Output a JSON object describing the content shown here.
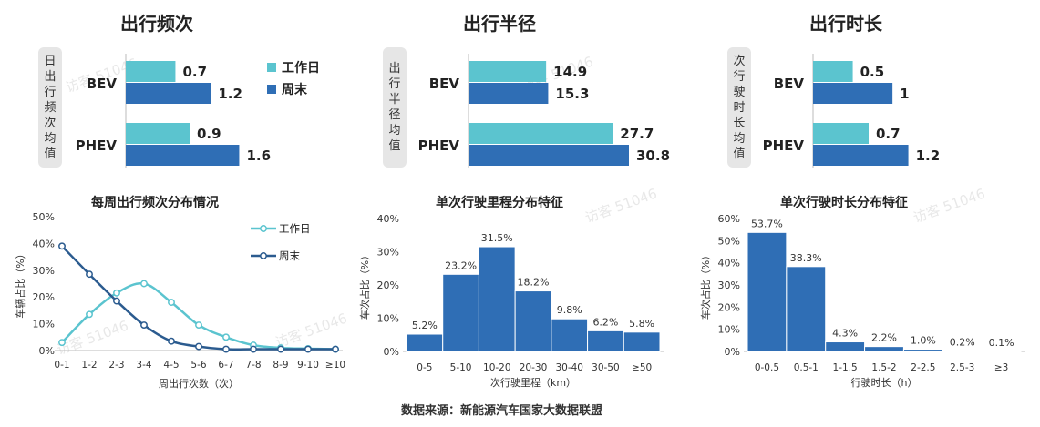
{
  "colors": {
    "workday": "#5bc4cf",
    "weekend": "#2f6eb5",
    "hist": "#2f6eb5",
    "line_light": "#5bc4cf",
    "line_dark": "#2b5b8f"
  },
  "sections": [
    {
      "title": "出行频次",
      "side_label": "日出行频次均值"
    },
    {
      "title": "出行半径",
      "side_label": "出行半径均值"
    },
    {
      "title": "出行时长",
      "side_label": "次行驶时长均值"
    }
  ],
  "legend": {
    "workday": "工作日",
    "weekend": "周末"
  },
  "watermark": "访客 51046",
  "source": "数据来源：新能源汽车国家大数据联盟",
  "chart_data": [
    {
      "type": "bar",
      "orientation": "horizontal",
      "categories": [
        "BEV",
        "PHEV"
      ],
      "series": [
        {
          "name": "工作日",
          "values": [
            0.7,
            0.9
          ]
        },
        {
          "name": "周末",
          "values": [
            1.2,
            1.6
          ]
        }
      ],
      "labels": [
        [
          "0.7",
          "1.2"
        ],
        [
          "0.9",
          "1.6"
        ]
      ],
      "xlim": [
        0,
        1.8
      ]
    },
    {
      "type": "bar",
      "orientation": "horizontal",
      "categories": [
        "BEV",
        "PHEV"
      ],
      "series": [
        {
          "name": "工作日",
          "values": [
            14.9,
            27.7
          ]
        },
        {
          "name": "周末",
          "values": [
            15.3,
            30.8
          ]
        }
      ],
      "labels": [
        [
          "14.9",
          "15.3"
        ],
        [
          "27.7",
          "30.8"
        ]
      ],
      "xlim": [
        0,
        35
      ]
    },
    {
      "type": "bar",
      "orientation": "horizontal",
      "categories": [
        "BEV",
        "PHEV"
      ],
      "series": [
        {
          "name": "工作日",
          "values": [
            0.5,
            0.7
          ]
        },
        {
          "name": "周末",
          "values": [
            1.0,
            1.2
          ]
        }
      ],
      "labels": [
        [
          "0.5",
          "1"
        ],
        [
          "0.7",
          "1.2"
        ]
      ],
      "xlim": [
        0,
        1.4
      ]
    },
    {
      "type": "line",
      "title": "每周出行频次分布情况",
      "xlabel": "周出行次数（次）",
      "ylabel": "车辆占比（%）",
      "categories": [
        "0-1",
        "1-2",
        "2-3",
        "3-4",
        "4-5",
        "5-6",
        "6-7",
        "7-8",
        "8-9",
        "9-10",
        "≥10"
      ],
      "yticks": [
        "0%",
        "10%",
        "20%",
        "30%",
        "40%",
        "50%"
      ],
      "ylim": [
        0,
        50
      ],
      "series": [
        {
          "name": "工作日",
          "values": [
            3,
            13.5,
            21.5,
            25,
            18,
            9.5,
            5,
            2,
            1,
            0.7,
            0.5
          ]
        },
        {
          "name": "周末",
          "values": [
            39,
            28.5,
            18.5,
            9.5,
            3.5,
            1.5,
            0.5,
            0.5,
            0.5,
            0.5,
            0.5
          ]
        }
      ]
    },
    {
      "type": "bar",
      "title": "单次行驶里程分布特征",
      "xlabel": "次行驶里程（km）",
      "ylabel": "车次占比（%）",
      "categories": [
        "0-5",
        "5-10",
        "10-20",
        "20-30",
        "30-40",
        "30-50",
        "≥50"
      ],
      "values": [
        5.2,
        23.2,
        31.5,
        18.2,
        9.8,
        6.2,
        5.8
      ],
      "labels": [
        "5.2%",
        "23.2%",
        "31.5%",
        "18.2%",
        "9.8%",
        "6.2%",
        "5.8%"
      ],
      "yticks": [
        "0%",
        "10%",
        "20%",
        "30%",
        "40%"
      ],
      "ylim": [
        0,
        40
      ]
    },
    {
      "type": "bar",
      "title": "单次行驶时长分布特征",
      "xlabel": "行驶时长（h）",
      "ylabel": "车次占比（%）",
      "categories": [
        "0-0.5",
        "0.5-1",
        "1-1.5",
        "1.5-2",
        "2-2.5",
        "2.5-3",
        "≥3"
      ],
      "values": [
        53.7,
        38.3,
        4.3,
        2.2,
        1.0,
        0.2,
        0.1
      ],
      "labels": [
        "53.7%",
        "38.3%",
        "4.3%",
        "2.2%",
        "1.0%",
        "0.2%",
        "0.1%"
      ],
      "yticks": [
        "0%",
        "10%",
        "20%",
        "30%",
        "40%",
        "50%",
        "60%"
      ],
      "ylim": [
        0,
        60
      ]
    }
  ]
}
